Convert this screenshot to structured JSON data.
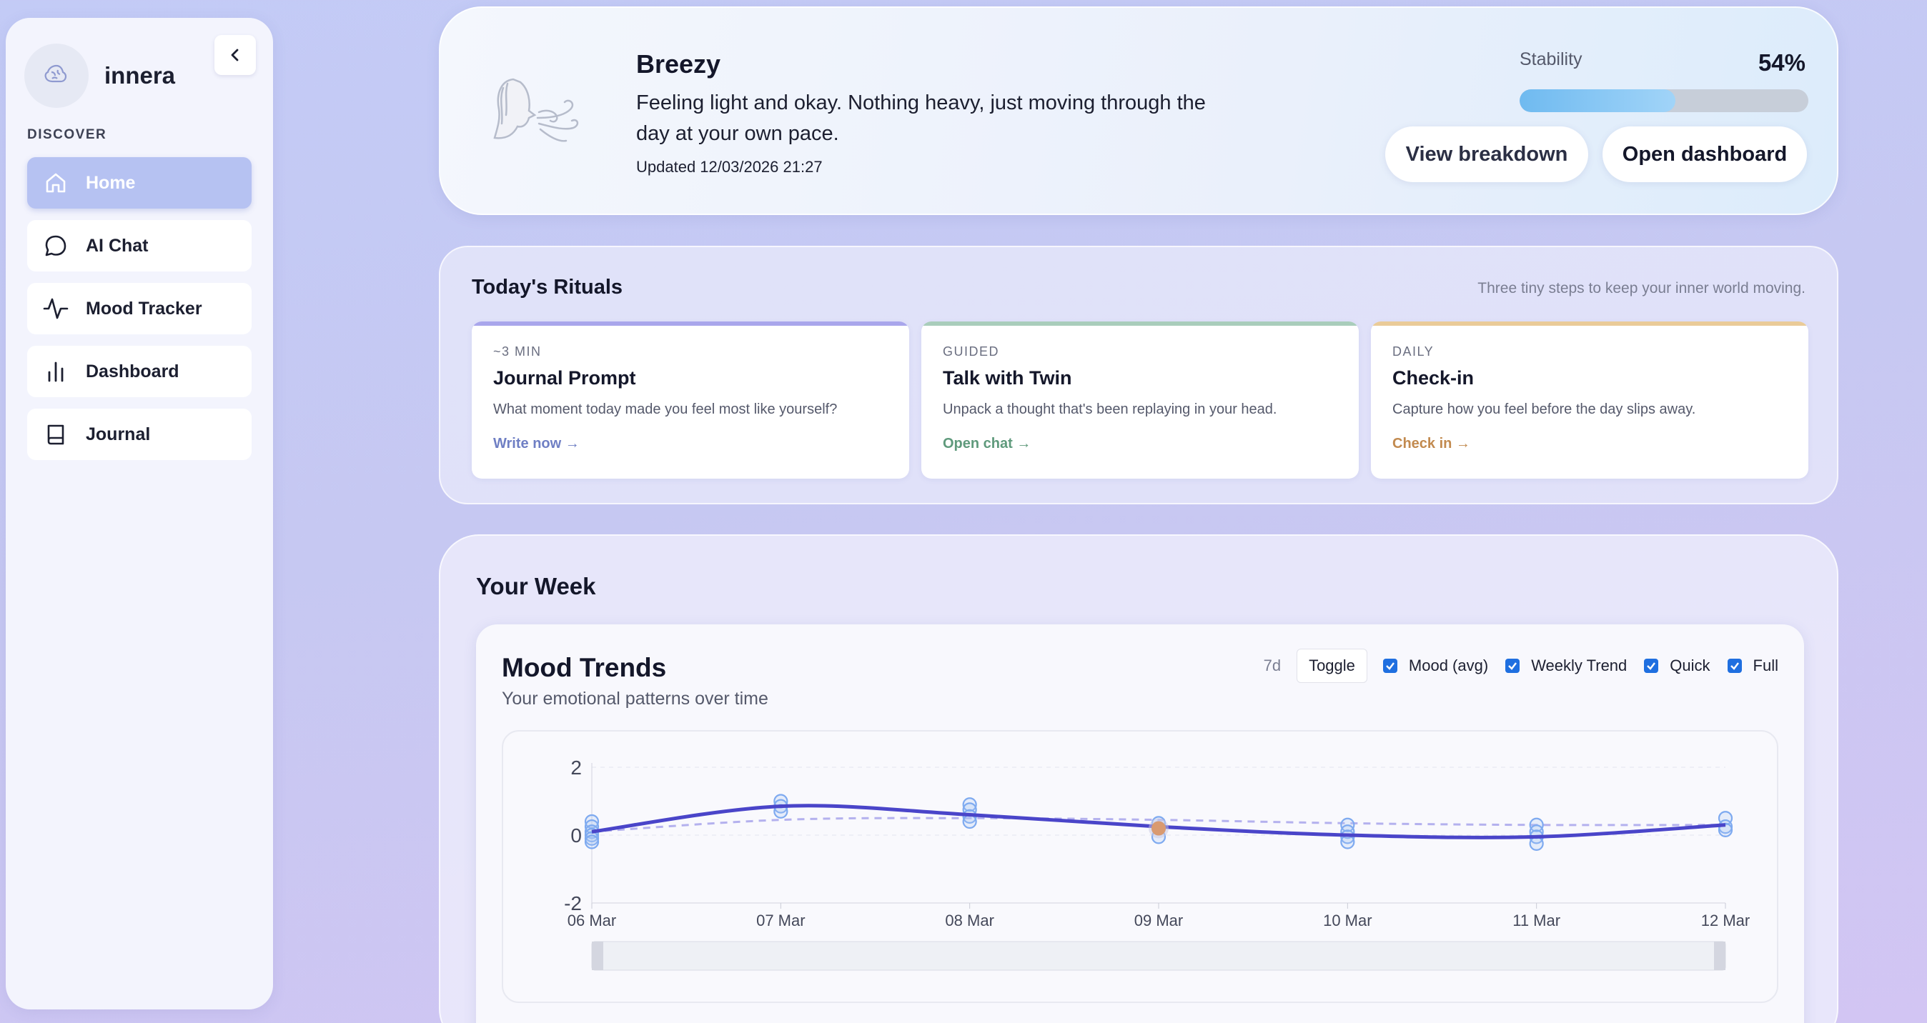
{
  "sidebar": {
    "brand": "innera",
    "section_title": "DISCOVER",
    "items": [
      {
        "label": "Home",
        "icon": "home-icon",
        "active": true
      },
      {
        "label": "AI Chat",
        "icon": "chat-bubble-icon",
        "active": false
      },
      {
        "label": "Mood Tracker",
        "icon": "activity-icon",
        "active": false
      },
      {
        "label": "Dashboard",
        "icon": "bar-chart-icon",
        "active": false
      },
      {
        "label": "Journal",
        "icon": "book-icon",
        "active": false
      }
    ]
  },
  "status": {
    "mood_title": "Breezy",
    "description": "Feeling light and okay. Nothing heavy, just moving through the day at your own pace.",
    "updated": "Updated 12/03/2026 21:27",
    "stability_label": "Stability",
    "stability_value": "54%",
    "stability_fraction": 0.54,
    "view_breakdown": "View breakdown",
    "open_dashboard": "Open dashboard"
  },
  "rituals": {
    "title": "Today's Rituals",
    "subtitle": "Three tiny steps to keep your inner world moving.",
    "cards": [
      {
        "kicker": "~3 MIN",
        "name": "Journal Prompt",
        "desc": "What moment today made you feel most like yourself?",
        "link": "Write now →",
        "accent": "#a9a6ec",
        "link_color": "#6f7fc4"
      },
      {
        "kicker": "GUIDED",
        "name": "Talk with Twin",
        "desc": "Unpack a thought that's been replaying in your head.",
        "link": "Open chat →",
        "accent": "#a9cdbb",
        "link_color": "#5f9a7c"
      },
      {
        "kicker": "DAILY",
        "name": "Check-in",
        "desc": "Capture how you feel before the day slips away.",
        "link": "Check in →",
        "accent": "#eacb98",
        "link_color": "#c28a4f"
      }
    ]
  },
  "week": {
    "title": "Your Week",
    "trend_title": "Mood Trends",
    "trend_subtitle": "Your emotional patterns over time",
    "range": "7d",
    "toggle": "Toggle",
    "checks": [
      "Mood (avg)",
      "Weekly Trend",
      "Quick",
      "Full"
    ]
  },
  "colors": {
    "accent": "#4a45c9",
    "trend": "#b4b1ee",
    "point": "#7eaaf0",
    "highlight": "#d99a70"
  },
  "chart_data": {
    "type": "line",
    "title": "Mood Trends",
    "categories": [
      "06 Mar",
      "07 Mar",
      "08 Mar",
      "09 Mar",
      "10 Mar",
      "11 Mar",
      "12 Mar"
    ],
    "yticks": [
      2,
      0,
      -2
    ],
    "ylim": [
      -2,
      2
    ],
    "series": [
      {
        "name": "Mood (avg)",
        "values": [
          0.1,
          0.85,
          0.6,
          0.25,
          0.0,
          -0.05,
          0.3
        ]
      },
      {
        "name": "Weekly Trend",
        "values": [
          0.1,
          0.45,
          0.5,
          0.45,
          0.35,
          0.3,
          0.3
        ]
      }
    ],
    "entries": [
      {
        "day": 0,
        "values": [
          0.4,
          0.25,
          0.1,
          0.0,
          -0.1,
          -0.2
        ]
      },
      {
        "day": 1,
        "values": [
          1.0,
          0.85,
          0.7
        ]
      },
      {
        "day": 2,
        "values": [
          0.9,
          0.75,
          0.55,
          0.4
        ]
      },
      {
        "day": 3,
        "values": [
          0.35,
          0.2,
          -0.05
        ]
      },
      {
        "day": 4,
        "values": [
          0.3,
          0.1,
          -0.05,
          -0.2
        ]
      },
      {
        "day": 5,
        "values": [
          0.3,
          0.1,
          -0.05,
          -0.25
        ]
      },
      {
        "day": 6,
        "values": [
          0.5,
          0.25,
          0.15
        ]
      }
    ],
    "highlight": {
      "day": 3,
      "value": 0.2
    }
  }
}
